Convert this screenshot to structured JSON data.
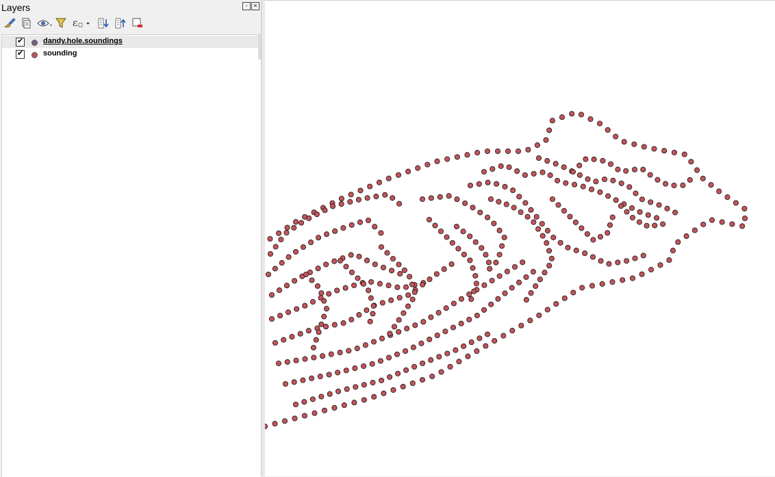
{
  "panel": {
    "title": "Layers",
    "float_icon": "float-panel-icon",
    "close_icon": "close-panel-icon"
  },
  "toolbar": {
    "buttons": [
      {
        "name": "style-manager-button",
        "icon": "paintbrush-icon"
      },
      {
        "name": "add-group-button",
        "icon": "add-group-icon"
      },
      {
        "name": "manage-visibility-button",
        "icon": "eye-icon"
      },
      {
        "name": "filter-legend-button",
        "icon": "funnel-icon"
      },
      {
        "name": "filter-by-expression-button",
        "icon": "epsilon-icon"
      },
      {
        "name": "expand-all-button",
        "icon": "expand-all-icon"
      },
      {
        "name": "collapse-all-button",
        "icon": "collapse-all-icon"
      },
      {
        "name": "remove-layer-button",
        "icon": "remove-layer-icon"
      }
    ]
  },
  "layers": [
    {
      "name": "dandy.hole.soundings",
      "checked": true,
      "selected": true,
      "symbol_color": "#7b5f86"
    },
    {
      "name": "sounding",
      "checked": true,
      "selected": false,
      "symbol_color": "#c0565c"
    }
  ],
  "map": {
    "point_fill": "#c0565c",
    "point_stroke": "#2a1a1a",
    "background": "#ffffff"
  }
}
